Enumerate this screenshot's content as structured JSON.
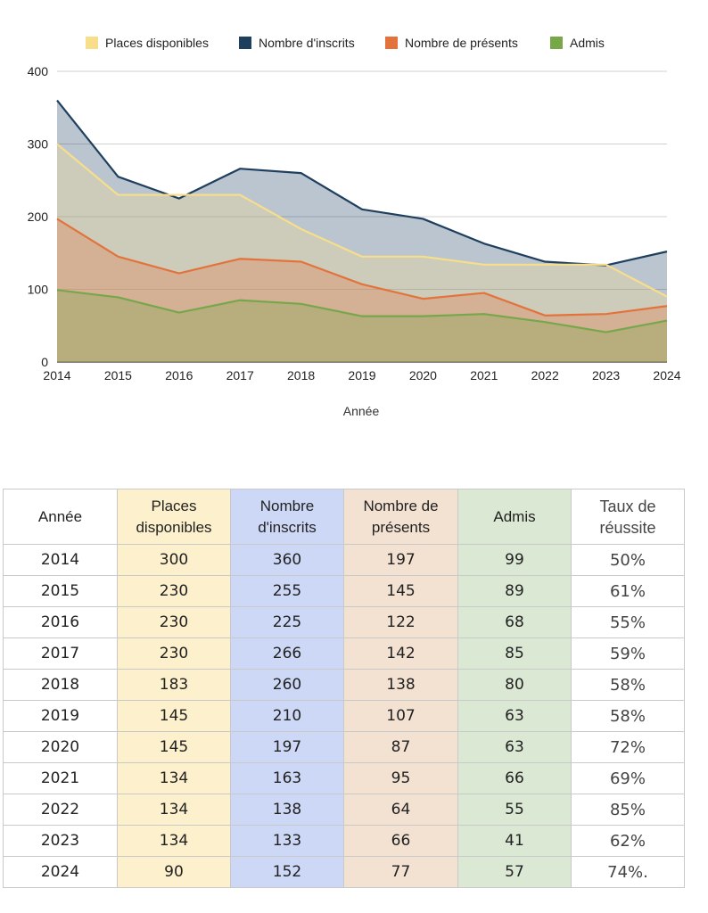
{
  "chart_data": {
    "type": "area",
    "xlabel": "Année",
    "ylabel": "",
    "ylim": [
      0,
      400
    ],
    "yticks": [
      0,
      100,
      200,
      300,
      400
    ],
    "grid": true,
    "legend_position": "top",
    "categories": [
      "2014",
      "2015",
      "2016",
      "2017",
      "2018",
      "2019",
      "2020",
      "2021",
      "2022",
      "2023",
      "2024"
    ],
    "series": [
      {
        "name": "Places disponibles",
        "color": "#f7de8a",
        "values": [
          300,
          230,
          230,
          230,
          183,
          145,
          145,
          134,
          134,
          134,
          90
        ]
      },
      {
        "name": "Nombre d'inscrits",
        "color": "#1f3f5f",
        "values": [
          360,
          255,
          225,
          266,
          260,
          210,
          197,
          163,
          138,
          133,
          152
        ]
      },
      {
        "name": "Nombre de présents",
        "color": "#e3733c",
        "values": [
          197,
          145,
          122,
          142,
          138,
          107,
          87,
          95,
          64,
          66,
          77
        ]
      },
      {
        "name": "Admis",
        "color": "#76a74a",
        "values": [
          99,
          89,
          68,
          85,
          80,
          63,
          63,
          66,
          55,
          41,
          57
        ]
      }
    ]
  },
  "table": {
    "headers": [
      "Année",
      "Places disponibles",
      "Nombre d'inscrits",
      "Nombre de présents",
      "Admis",
      "Taux de réussite"
    ],
    "rows": [
      [
        "2014",
        "300",
        "360",
        "197",
        "99",
        "50%"
      ],
      [
        "2015",
        "230",
        "255",
        "145",
        "89",
        "61%"
      ],
      [
        "2016",
        "230",
        "225",
        "122",
        "68",
        "55%"
      ],
      [
        "2017",
        "230",
        "266",
        "142",
        "85",
        "59%"
      ],
      [
        "2018",
        "183",
        "260",
        "138",
        "80",
        "58%"
      ],
      [
        "2019",
        "145",
        "210",
        "107",
        "63",
        "58%"
      ],
      [
        "2020",
        "145",
        "197",
        "87",
        "63",
        "72%"
      ],
      [
        "2021",
        "134",
        "163",
        "95",
        "66",
        "69%"
      ],
      [
        "2022",
        "134",
        "138",
        "64",
        "55",
        "85%"
      ],
      [
        "2023",
        "134",
        "133",
        "66",
        "41",
        "62%"
      ],
      [
        "2024",
        "90",
        "152",
        "77",
        "57",
        "74%."
      ]
    ]
  }
}
